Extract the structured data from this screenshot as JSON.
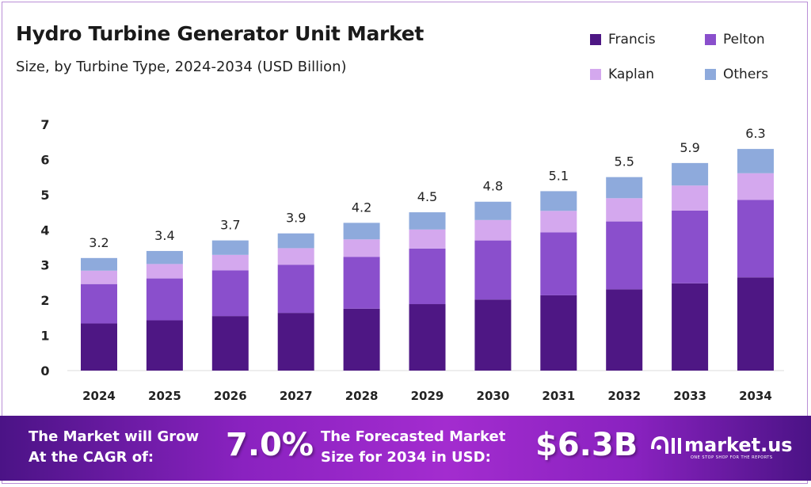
{
  "title": "Hydro Turbine Generator Unit Market",
  "subtitle": "Size, by Turbine Type, 2024-2034 (USD Billion)",
  "chart_data": {
    "type": "bar",
    "stacked": true,
    "categories": [
      "2024",
      "2025",
      "2026",
      "2027",
      "2028",
      "2029",
      "2030",
      "2031",
      "2032",
      "2033",
      "2034"
    ],
    "series": [
      {
        "name": "Francis",
        "color": "#4e1784",
        "values": [
          1.34,
          1.43,
          1.55,
          1.64,
          1.76,
          1.89,
          2.02,
          2.14,
          2.31,
          2.48,
          2.65
        ]
      },
      {
        "name": "Pelton",
        "color": "#8a4fcc",
        "values": [
          1.12,
          1.19,
          1.3,
          1.37,
          1.47,
          1.58,
          1.68,
          1.79,
          1.93,
          2.07,
          2.2
        ]
      },
      {
        "name": "Kaplan",
        "color": "#d4a8ee",
        "values": [
          0.38,
          0.41,
          0.44,
          0.47,
          0.5,
          0.54,
          0.58,
          0.61,
          0.66,
          0.71,
          0.76
        ]
      },
      {
        "name": "Others",
        "color": "#8eaadc",
        "values": [
          0.36,
          0.37,
          0.41,
          0.42,
          0.47,
          0.49,
          0.52,
          0.56,
          0.6,
          0.64,
          0.69
        ]
      }
    ],
    "totals": [
      "3.2",
      "3.4",
      "3.7",
      "3.9",
      "4.2",
      "4.5",
      "4.8",
      "5.1",
      "5.5",
      "5.9",
      "6.3"
    ],
    "ylim": [
      0,
      7
    ],
    "yticks": [
      "0",
      "1",
      "2",
      "3",
      "4",
      "5",
      "6",
      "7"
    ],
    "grid": false,
    "legend_position": "top-right"
  },
  "banner": {
    "cagr_label_1": "The Market will Grow",
    "cagr_label_2": "At the CAGR of:",
    "cagr_value": "7.0%",
    "forecast_label_1": "The Forecasted Market",
    "forecast_label_2": "Size for 2034 in USD:",
    "forecast_value": "$6.3B",
    "logo_name": "market.us",
    "logo_tagline": "ONE STOP SHOP FOR THE REPORTS"
  }
}
